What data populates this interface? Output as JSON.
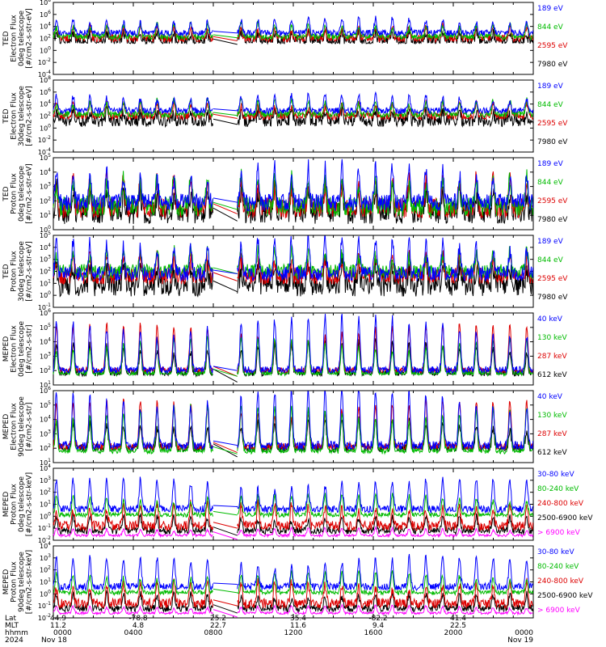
{
  "chart_data": {
    "type": "line",
    "x_time_labels": [
      "0000",
      "0400",
      "0800",
      "1200",
      "1600",
      "2000",
      "0000"
    ],
    "x_time_hours": [
      0,
      4,
      8,
      12,
      16,
      20,
      24
    ],
    "footer": {
      "row_labels": [
        "Lat",
        "MLT",
        "hhmm",
        "2024"
      ],
      "lat": [
        "44.9",
        "-78.8",
        "25.2",
        "35.4",
        "-82.2",
        "41.4"
      ],
      "mlt": [
        "11.2",
        "4.8",
        "22.7",
        "11.6",
        "9.4",
        "22.5"
      ],
      "hhmm": [
        "0000",
        "0400",
        "0800",
        "1200",
        "1600",
        "2000",
        "0000"
      ],
      "dates": [
        "Nov 18",
        "Nov 19"
      ]
    },
    "data_gap_hours": [
      8.0,
      9.2
    ],
    "panels": [
      {
        "ylabel": [
          "TED",
          "Electron Flux",
          "0deg telescope",
          "[#/cm2-s-str-eV]"
        ],
        "yexp": [
          -4,
          8
        ],
        "tick_exps": [
          -4,
          -2,
          0,
          2,
          4,
          6,
          8
        ],
        "series": [
          {
            "name": "7980 eV",
            "color": "#000000",
            "base": 1.6,
            "spike": 1.2,
            "noise": 0.9,
            "floor": 1.2
          },
          {
            "name": "2595 eV",
            "color": "#dd0000",
            "base": 2.0,
            "spike": 1.6,
            "noise": 0.6,
            "floor": 1.4
          },
          {
            "name": "844 eV",
            "color": "#00bb00",
            "base": 2.3,
            "spike": 1.8,
            "noise": 0.5,
            "floor": 1.6
          },
          {
            "name": "189 eV",
            "color": "#0000ff",
            "base": 2.9,
            "spike": 2.0,
            "noise": 0.5,
            "floor": 2.0
          }
        ]
      },
      {
        "ylabel": [
          "TED",
          "Electron Flux",
          "30deg telescope",
          "[#/cm2-s-str-eV]"
        ],
        "yexp": [
          -4,
          8
        ],
        "tick_exps": [
          -4,
          -2,
          0,
          2,
          4,
          6,
          8
        ],
        "series": [
          {
            "name": "7980 eV",
            "color": "#000000",
            "base": 1.2,
            "spike": 1.4,
            "noise": 1.0,
            "floor": 0.0
          },
          {
            "name": "2595 eV",
            "color": "#dd0000",
            "base": 2.0,
            "spike": 1.8,
            "noise": 0.6,
            "floor": 1.4
          },
          {
            "name": "844 eV",
            "color": "#00bb00",
            "base": 2.3,
            "spike": 2.0,
            "noise": 0.5,
            "floor": 1.6
          },
          {
            "name": "189 eV",
            "color": "#0000ff",
            "base": 2.9,
            "spike": 2.2,
            "noise": 0.5,
            "floor": 2.0
          }
        ]
      },
      {
        "ylabel": [
          "TED",
          "Proton Flux",
          "0deg telescope",
          "[#/cm2-s-str-eV]"
        ],
        "yexp": [
          0,
          5
        ],
        "tick_exps": [
          0,
          1,
          2,
          3,
          4,
          5
        ],
        "series": [
          {
            "name": "7980 eV",
            "color": "#000000",
            "base": 1.2,
            "spike": 1.4,
            "noise": 0.8,
            "floor": 0.1
          },
          {
            "name": "2595 eV",
            "color": "#dd0000",
            "base": 1.5,
            "spike": 1.6,
            "noise": 0.7,
            "floor": 0.4
          },
          {
            "name": "844 eV",
            "color": "#00bb00",
            "base": 1.6,
            "spike": 1.8,
            "noise": 0.7,
            "floor": 0.6
          },
          {
            "name": "189 eV",
            "color": "#0000ff",
            "base": 1.9,
            "spike": 2.0,
            "noise": 0.6,
            "floor": 0.8
          }
        ]
      },
      {
        "ylabel": [
          "TED",
          "Proton Flux",
          "30deg telescope",
          "[#/cm2-s-str-eV]"
        ],
        "yexp": [
          -1,
          5
        ],
        "tick_exps": [
          -1,
          0,
          1,
          2,
          3,
          4,
          5
        ],
        "series": [
          {
            "name": "7980 eV",
            "color": "#000000",
            "base": 0.9,
            "spike": 1.4,
            "noise": 1.0,
            "floor": -0.2
          },
          {
            "name": "2595 eV",
            "color": "#dd0000",
            "base": 1.6,
            "spike": 1.4,
            "noise": 0.7,
            "floor": 0.4
          },
          {
            "name": "844 eV",
            "color": "#00bb00",
            "base": 2.0,
            "spike": 1.5,
            "noise": 0.6,
            "floor": 0.8
          },
          {
            "name": "189 eV",
            "color": "#0000ff",
            "base": 1.8,
            "spike": 2.4,
            "noise": 0.6,
            "floor": 0.8
          }
        ]
      },
      {
        "ylabel": [
          "MEPED",
          "Electron Flux",
          "0deg telescope",
          "[#/cm2-s-str]"
        ],
        "yexp": [
          1,
          6
        ],
        "tick_exps": [
          1,
          2,
          3,
          4,
          5,
          6
        ],
        "series": [
          {
            "name": "612 keV",
            "color": "#000000",
            "base": 1.8,
            "spike": 1.8,
            "noise": 0.25,
            "floor": 1.7
          },
          {
            "name": "287 keV",
            "color": "#dd0000",
            "base": 2.0,
            "spike": 2.6,
            "noise": 0.2,
            "floor": 1.9
          },
          {
            "name": "130 keV",
            "color": "#00bb00",
            "base": 1.8,
            "spike": 2.0,
            "noise": 0.15,
            "floor": 1.7
          },
          {
            "name": "40 keV",
            "color": "#0000ff",
            "base": 2.0,
            "spike": 3.0,
            "noise": 0.3,
            "floor": 1.9
          }
        ]
      },
      {
        "ylabel": [
          "MEPED",
          "Electron Flux",
          "90deg telescope",
          "[#/cm2-s-str]"
        ],
        "yexp": [
          1,
          6
        ],
        "tick_exps": [
          1,
          2,
          3,
          4,
          5,
          6
        ],
        "series": [
          {
            "name": "612 keV",
            "color": "#000000",
            "base": 2.0,
            "spike": 1.6,
            "noise": 0.3,
            "floor": 1.8
          },
          {
            "name": "287 keV",
            "color": "#dd0000",
            "base": 2.1,
            "spike": 2.6,
            "noise": 0.25,
            "floor": 1.9
          },
          {
            "name": "130 keV",
            "color": "#00bb00",
            "base": 1.8,
            "spike": 2.6,
            "noise": 0.2,
            "floor": 1.7
          },
          {
            "name": "40 keV",
            "color": "#0000ff",
            "base": 2.2,
            "spike": 3.2,
            "noise": 0.3,
            "floor": 1.9
          }
        ]
      },
      {
        "ylabel": [
          "MEPED",
          "Proton Flux",
          "0deg telescope",
          "[#/cm2-s-str-keV]"
        ],
        "yexp": [
          -2,
          4
        ],
        "tick_exps": [
          -2,
          -1,
          0,
          1,
          2,
          3,
          4
        ],
        "series": [
          {
            "name": "> 6900 keV",
            "color": "#ff00ff",
            "base": -1.6,
            "spike": 0.5,
            "noise": 0.1,
            "floor": -1.8
          },
          {
            "name": "2500-6900 keV",
            "color": "#000000",
            "base": -1.2,
            "spike": 1.0,
            "noise": 0.3,
            "floor": -1.5
          },
          {
            "name": "240-800 keV",
            "color": "#dd0000",
            "base": -0.8,
            "spike": 1.5,
            "noise": 0.4,
            "floor": -1.2
          },
          {
            "name": "80-240 keV",
            "color": "#00bb00",
            "base": 0.1,
            "spike": 1.4,
            "noise": 0.2,
            "floor": 0.0
          },
          {
            "name": "30-80 keV",
            "color": "#0000ff",
            "base": 0.6,
            "spike": 2.0,
            "noise": 0.3,
            "floor": 0.3
          }
        ]
      },
      {
        "ylabel": [
          "MEPED",
          "Proton Flux",
          "90deg telescope",
          "[#/cm2-s-str-keV]"
        ],
        "yexp": [
          -2,
          4
        ],
        "tick_exps": [
          -2,
          -1,
          0,
          1,
          2,
          3,
          4
        ],
        "series": [
          {
            "name": "> 6900 keV",
            "color": "#ff00ff",
            "base": -1.6,
            "spike": 0.5,
            "noise": 0.1,
            "floor": -1.8
          },
          {
            "name": "2500-6900 keV",
            "color": "#000000",
            "base": -1.2,
            "spike": 1.0,
            "noise": 0.3,
            "floor": -1.5
          },
          {
            "name": "240-800 keV",
            "color": "#dd0000",
            "base": -0.8,
            "spike": 1.5,
            "noise": 0.4,
            "floor": -1.2
          },
          {
            "name": "80-240 keV",
            "color": "#00bb00",
            "base": 0.1,
            "spike": 1.4,
            "noise": 0.2,
            "floor": 0.0
          },
          {
            "name": "30-80 keV",
            "color": "#0000ff",
            "base": 0.6,
            "spike": 2.0,
            "noise": 0.3,
            "floor": 0.3
          }
        ]
      }
    ]
  }
}
